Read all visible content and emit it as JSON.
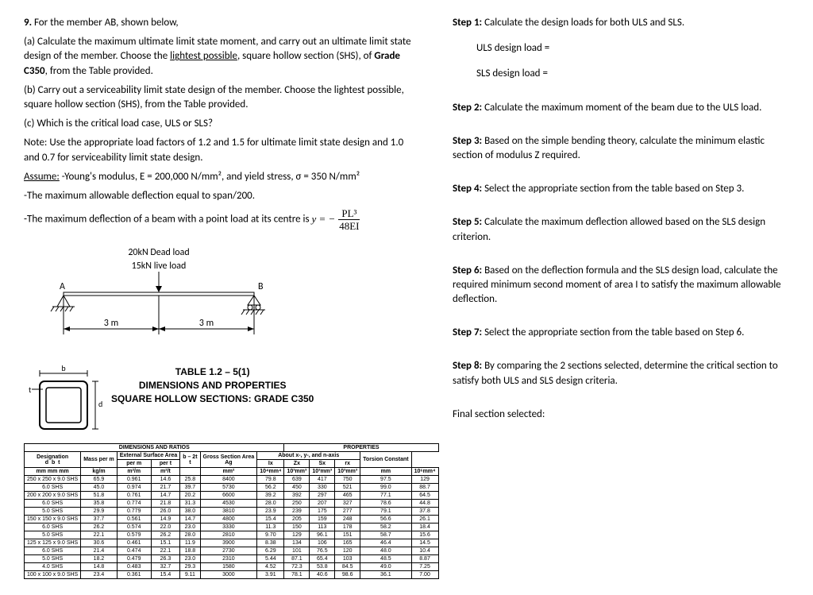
{
  "left": {
    "q_num": "9.",
    "q_lead": "For the member AB, shown below,",
    "part_a": "(a) Calculate the maximum ultimate limit state moment, and carry out an ultimate limit state design of the member.  Choose the ",
    "part_a_underline": "lightest possible",
    "part_a_tail": ", square hollow section (SHS), of ",
    "part_a_grade": "Grade C350",
    "part_a_end": ", from the Table provided.",
    "part_b": "(b) Carry out a serviceability limit state design of the member.  Choose the lightest possible, square hollow section (SHS), from the Table provided.",
    "part_c": "(c) Which is the critical load case, ULS or SLS?",
    "note": "Note: Use the appropriate load factors of 1.2 and 1.5 for ultimate limit state design and 1.0 and 0.7 for serviceability limit state design.",
    "assume_label": "Assume:",
    "assume_line1": " -Young's modulus, E = 200,000 N/mm², and yield stress, σ = 350 N/mm²",
    "assume_line2": " -The maximum allowable deflection equal to span/200.",
    "assume_line3": " -The maximum deflection of a beam with a point load at its centre is ",
    "formula_lhs": "y = −",
    "formula_num": "PL³",
    "formula_den": "48EI",
    "load_dead": "20kN Dead load",
    "load_live": "15kN live load",
    "beam_A": "A",
    "beam_B": "B",
    "span_left": "3 m",
    "span_right": "3 m",
    "section_b": "b",
    "section_t": "t",
    "section_d": "d",
    "table_title1": "TABLE 1.2 – 5(1)",
    "table_title2": "DIMENSIONS AND PROPERTIES",
    "table_title3": "SQUARE HOLLOW SECTIONS: GRADE C350",
    "headers": {
      "dimratios": "DIMENSIONS AND RATIOS",
      "properties": "PROPERTIES",
      "designation": "Designation",
      "mass": "Mass per m",
      "ext": "External Surface Area",
      "perm": "per m",
      "pert": "per t",
      "bt": "b – 2t",
      "cross": "Gross Section Area",
      "about": "About x-, y-, and n-axis",
      "torsion": "Torsion Constant",
      "d": "d",
      "b": "b",
      "t": "t",
      "Ix": "Ix",
      "Zx": "Zx",
      "Sx": "Sx",
      "rx": "rx",
      "J": "J",
      "mm": "mm",
      "kg": "kg/m",
      "m2m": "m²/m",
      "m2t": "m²/t",
      "Ag": "Ag",
      "mm2": "mm²",
      "u_t": "t",
      "e4mm4": "10⁴mm⁴",
      "e3mm3": "10³mm³",
      "rmm": "mm",
      "e6mm4": "10⁶mm⁴"
    },
    "rows": [
      [
        "250 x 250 x 9.0 SHS",
        "65.9",
        "0.961",
        "14.6",
        "25.8",
        "8400",
        "79.8",
        "639",
        "417",
        "750",
        "97.5",
        "129"
      ],
      [
        "6.0 SHS",
        "45.0",
        "0.974",
        "21.7",
        "39.7",
        "5730",
        "56.2",
        "450",
        "330",
        "521",
        "99.0",
        "88.7"
      ],
      [
        "200 x 200 x 9.0 SHS",
        "51.8",
        "0.761",
        "14.7",
        "20.2",
        "6600",
        "39.2",
        "392",
        "297",
        "465",
        "77.1",
        "64.5"
      ],
      [
        "6.0 SHS",
        "35.8",
        "0.774",
        "21.8",
        "31.3",
        "4530",
        "28.0",
        "250",
        "207",
        "327",
        "78.6",
        "44.8"
      ],
      [
        "5.0 SHS",
        "29.9",
        "0.779",
        "26.0",
        "38.0",
        "3810",
        "23.9",
        "239",
        "175",
        "277",
        "79.1",
        "37.8"
      ],
      [
        "150 x 150 x 9.0 SHS",
        "37.7",
        "0.561",
        "14.9",
        "14.7",
        "4800",
        "15.4",
        "205",
        "159",
        "248",
        "56.6",
        "26.1"
      ],
      [
        "6.0 SHS",
        "26.2",
        "0.574",
        "22.0",
        "23.0",
        "3330",
        "11.3",
        "150",
        "113",
        "178",
        "58.2",
        "18.4"
      ],
      [
        "5.0 SHS",
        "22.1",
        "0.579",
        "26.2",
        "28.0",
        "2810",
        "9.70",
        "129",
        "96.1",
        "151",
        "58.7",
        "15.6"
      ],
      [
        "125 x 125 x 9.0 SHS",
        "30.6",
        "0.461",
        "15.1",
        "11.9",
        "3900",
        "8.38",
        "134",
        "106",
        "165",
        "46.4",
        "14.5"
      ],
      [
        "6.0 SHS",
        "21.4",
        "0.474",
        "22.1",
        "18.8",
        "2730",
        "6.29",
        "101",
        "76.5",
        "120",
        "48.0",
        "10.4"
      ],
      [
        "5.0 SHS",
        "18.2",
        "0.479",
        "26.3",
        "23.0",
        "2310",
        "5.44",
        "87.1",
        "65.4",
        "103",
        "48.5",
        "8.87"
      ],
      [
        "4.0 SHS",
        "14.8",
        "0.483",
        "32.7",
        "29.3",
        "1580",
        "4.52",
        "72.3",
        "53.8",
        "84.5",
        "49.0",
        "7.25"
      ],
      [
        "100 x 100 x 9.0 SHS",
        "23.4",
        "0.361",
        "15.4",
        "9.11",
        "3000",
        "3.91",
        "78.1",
        "40.6",
        "98.6",
        "36.1",
        "7.00"
      ]
    ]
  },
  "right": {
    "steps": [
      {
        "label": "Step 1:",
        "text": " Calculate the design loads for both ULS and SLS.",
        "extras": [
          "ULS design load =",
          "SLS design load ="
        ]
      },
      {
        "label": "Step 2:",
        "text": " Calculate the maximum moment of the beam due to the ULS load."
      },
      {
        "label": "Step 3:",
        "text": " Based on the simple bending theory, calculate the minimum elastic section of modulus Z required."
      },
      {
        "label": "Step 4:",
        "text": " Select the appropriate section from the table based on Step 3."
      },
      {
        "label": "Step 5:",
        "text": " Calculate the maximum deflection allowed based on the SLS design criterion."
      },
      {
        "label": "Step 6:",
        "text": " Based on the deflection formula and the SLS design load, calculate the required minimum second moment of area I to satisfy the maximum allowable deflection."
      },
      {
        "label": "Step 7:",
        "text": " Select the appropriate section from the table based on Step 6."
      },
      {
        "label": "Step 8:",
        "text": " By comparing the 2 sections selected, determine the critical section to satisfy both ULS and SLS design criteria."
      }
    ],
    "final": "Final section selected:"
  }
}
